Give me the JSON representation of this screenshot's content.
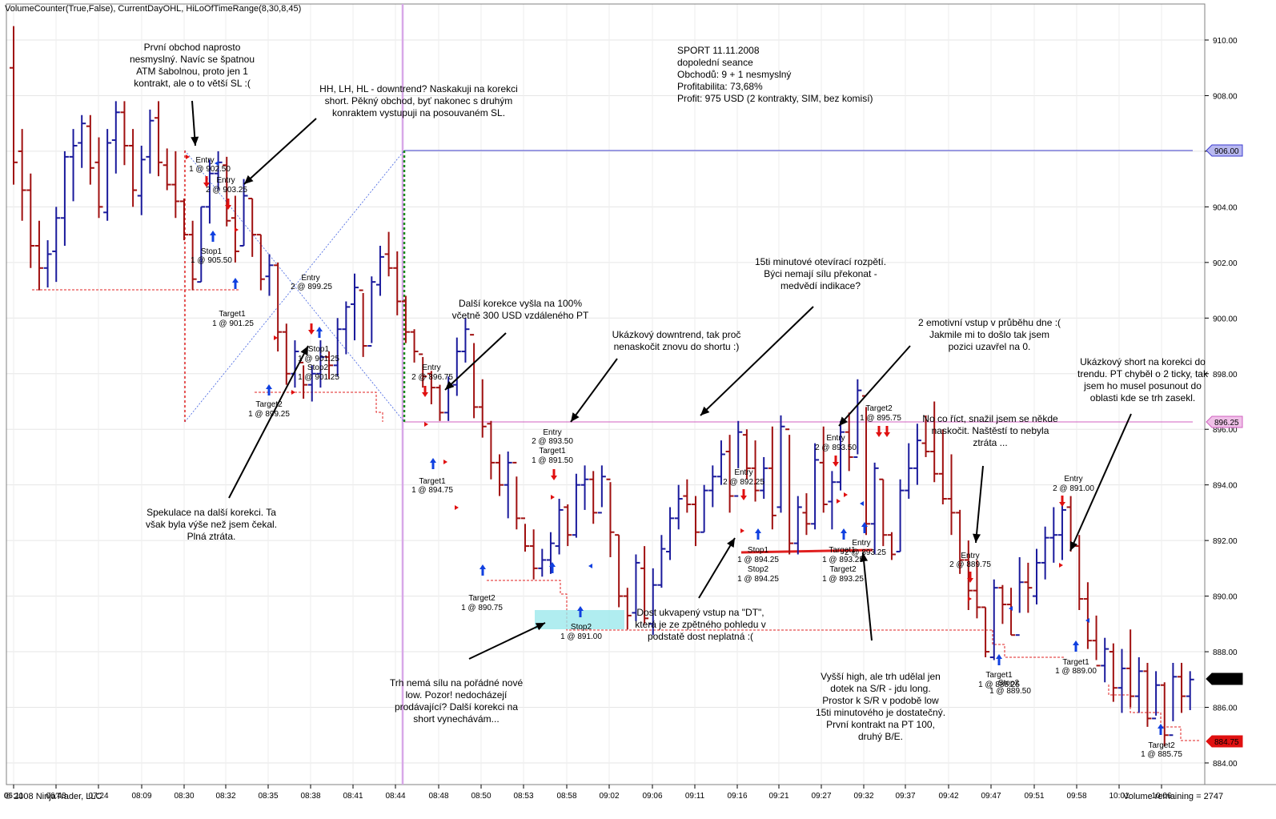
{
  "header": {
    "indicators": "VolumeCounter(True,False), CurrentDayOHL, HiLoOfTimeRange(8,30,8,45)",
    "copyright": "© 2008 NinjaTrader, LLC",
    "volume_remaining": "Volume remaining = 2747"
  },
  "chart_data": {
    "type": "bar",
    "ylim": [
      883.5,
      911.5
    ],
    "yticks": [
      "910.00",
      "908.00",
      "906.00",
      "904.00",
      "902.00",
      "900.00",
      "898.00",
      "896.00",
      "894.00",
      "892.00",
      "890.00",
      "888.00",
      "886.00",
      "884.00"
    ],
    "xticks": [
      "06:11",
      "06:43",
      "07:24",
      "08:09",
      "08:30",
      "08:32",
      "08:35",
      "08:38",
      "08:41",
      "08:44",
      "08:48",
      "08:50",
      "08:53",
      "08:58",
      "09:02",
      "09:06",
      "09:11",
      "09:16",
      "09:21",
      "09:27",
      "09:32",
      "09:37",
      "09:42",
      "09:47",
      "09:51",
      "09:58",
      "10:01",
      "10:06"
    ],
    "price_markers": [
      {
        "value": "906.00",
        "color": "#3c3cd0",
        "style": "line"
      },
      {
        "value": "896.25",
        "color": "#d060c0",
        "style": "line"
      },
      {
        "value": "887.00",
        "color": "#000000",
        "style": "badge"
      },
      {
        "value": "884.75",
        "color": "#e01010",
        "style": "badge"
      }
    ],
    "colors": {
      "up": "#1a1a9c",
      "down": "#a01010"
    },
    "bars": [
      [
        910.5,
        904.8,
        909.0,
        905.6
      ],
      [
        906.8,
        903.5,
        906.0,
        904.6
      ],
      [
        905.2,
        901.8,
        904.6,
        902.6
      ],
      [
        903.5,
        901.0,
        902.6,
        901.8
      ],
      [
        902.8,
        901.1,
        901.8,
        902.3
      ],
      [
        904.0,
        901.3,
        902.4,
        903.6
      ],
      [
        906.0,
        902.6,
        903.6,
        905.8
      ],
      [
        906.8,
        904.2,
        905.8,
        906.2
      ],
      [
        907.3,
        905.4,
        906.3,
        907.0
      ],
      [
        907.3,
        904.8,
        906.9,
        905.4
      ],
      [
        906.5,
        903.6,
        905.6,
        904.0
      ],
      [
        906.8,
        903.5,
        903.8,
        906.3
      ],
      [
        907.8,
        905.2,
        906.4,
        907.4
      ],
      [
        907.8,
        905.5,
        907.4,
        906.2
      ],
      [
        906.8,
        904.0,
        906.2,
        904.6
      ],
      [
        906.2,
        903.7,
        904.4,
        905.7
      ],
      [
        907.5,
        905.2,
        905.8,
        907.1
      ],
      [
        907.8,
        905.1,
        907.2,
        905.6
      ],
      [
        906.1,
        904.6,
        905.5,
        904.8
      ],
      [
        906.0,
        903.6,
        904.8,
        904.2
      ],
      [
        904.3,
        902.8,
        904.2,
        903.0
      ],
      [
        903.5,
        901.0,
        903.0,
        901.4
      ],
      [
        904.0,
        901.3,
        901.3,
        904.0
      ],
      [
        905.7,
        903.4,
        904.0,
        905.2
      ],
      [
        906.0,
        904.6,
        905.2,
        905.6
      ],
      [
        905.8,
        903.3,
        905.5,
        903.5
      ],
      [
        904.4,
        902.0,
        903.6,
        902.4
      ],
      [
        905.0,
        902.6,
        902.6,
        904.4
      ],
      [
        904.3,
        902.2,
        904.3,
        903.0
      ],
      [
        903.0,
        901.0,
        903.0,
        901.4
      ],
      [
        902.3,
        900.8,
        901.5,
        901.9
      ],
      [
        902.0,
        898.8,
        901.9,
        899.5
      ],
      [
        899.8,
        897.6,
        899.5,
        898.0
      ],
      [
        899.2,
        897.5,
        898.0,
        898.8
      ],
      [
        898.3,
        897.1,
        898.4,
        897.6
      ],
      [
        898.3,
        897.0,
        897.6,
        898.0
      ],
      [
        899.2,
        897.5,
        898.0,
        898.6
      ],
      [
        898.8,
        897.8,
        898.6,
        898.3
      ],
      [
        900.0,
        897.9,
        898.3,
        899.6
      ],
      [
        900.6,
        898.7,
        899.6,
        900.4
      ],
      [
        901.6,
        899.2,
        900.5,
        901.1
      ],
      [
        900.9,
        898.6,
        901.0,
        899.0
      ],
      [
        901.5,
        899.1,
        899.0,
        901.3
      ],
      [
        902.6,
        900.8,
        901.2,
        902.2
      ],
      [
        903.1,
        901.5,
        902.3,
        901.8
      ],
      [
        902.4,
        900.1,
        901.8,
        900.6
      ],
      [
        900.8,
        899.1,
        900.6,
        899.5
      ],
      [
        899.6,
        898.4,
        899.5,
        898.8
      ],
      [
        898.6,
        897.5,
        898.7,
        897.9
      ],
      [
        898.1,
        896.9,
        898.0,
        897.5
      ],
      [
        897.6,
        896.3,
        897.5,
        896.6
      ],
      [
        897.9,
        896.3,
        896.6,
        897.6
      ],
      [
        899.3,
        897.2,
        897.6,
        898.8
      ],
      [
        900.0,
        898.4,
        898.8,
        899.6
      ],
      [
        899.1,
        896.4,
        899.4,
        896.8
      ],
      [
        897.8,
        895.7,
        896.8,
        896.1
      ],
      [
        896.3,
        894.2,
        896.2,
        894.8
      ],
      [
        895.1,
        893.6,
        894.8,
        894.0
      ],
      [
        895.2,
        892.8,
        894.0,
        894.8
      ],
      [
        894.3,
        892.4,
        894.8,
        892.8
      ],
      [
        892.6,
        891.6,
        892.8,
        891.8
      ],
      [
        892.4,
        890.6,
        891.8,
        891.0
      ],
      [
        891.7,
        890.7,
        891.0,
        891.3
      ],
      [
        892.3,
        890.8,
        891.3,
        891.9
      ],
      [
        893.5,
        891.5,
        891.8,
        893.1
      ],
      [
        893.3,
        891.8,
        893.2,
        892.2
      ],
      [
        894.4,
        892.1,
        892.2,
        894.0
      ],
      [
        894.7,
        893.1,
        894.0,
        894.2
      ],
      [
        894.5,
        892.6,
        894.2,
        893.0
      ],
      [
        894.7,
        893.2,
        893.0,
        894.3
      ],
      [
        894.1,
        891.4,
        894.2,
        892.3
      ],
      [
        892.2,
        889.6,
        892.2,
        890.0
      ],
      [
        890.3,
        888.8,
        890.0,
        889.3
      ],
      [
        891.5,
        889.1,
        889.4,
        891.2
      ],
      [
        891.8,
        889.0,
        891.0,
        889.2
      ],
      [
        891.0,
        888.6,
        889.0,
        890.4
      ],
      [
        892.2,
        890.3,
        890.4,
        891.7
      ],
      [
        893.2,
        891.3,
        891.6,
        892.8
      ],
      [
        894.0,
        892.4,
        892.8,
        893.5
      ],
      [
        894.2,
        893.0,
        893.6,
        893.3
      ],
      [
        893.6,
        891.8,
        893.3,
        892.3
      ],
      [
        894.0,
        892.3,
        892.3,
        893.8
      ],
      [
        894.7,
        893.2,
        893.8,
        894.3
      ],
      [
        895.6,
        894.0,
        894.3,
        895.1
      ],
      [
        895.8,
        893.0,
        895.2,
        893.6
      ],
      [
        896.3,
        894.6,
        893.6,
        895.9
      ],
      [
        896.0,
        894.2,
        895.8,
        894.6
      ],
      [
        895.6,
        893.4,
        894.6,
        893.8
      ],
      [
        895.0,
        893.5,
        893.8,
        894.6
      ],
      [
        896.1,
        892.4,
        894.6,
        892.9
      ],
      [
        896.5,
        893.0,
        893.2,
        896.1
      ],
      [
        895.8,
        891.5,
        896.0,
        891.9
      ],
      [
        893.6,
        891.5,
        891.9,
        893.2
      ],
      [
        893.7,
        892.2,
        893.0,
        892.6
      ],
      [
        895.5,
        892.4,
        892.6,
        894.9
      ],
      [
        896.1,
        893.0,
        894.8,
        893.3
      ],
      [
        894.5,
        892.4,
        893.4,
        894.1
      ],
      [
        896.3,
        893.8,
        894.1,
        895.9
      ],
      [
        896.6,
        894.5,
        895.9,
        895.0
      ],
      [
        897.8,
        895.1,
        895.0,
        897.4
      ],
      [
        896.8,
        892.2,
        897.2,
        892.6
      ],
      [
        894.8,
        891.5,
        892.6,
        894.6
      ],
      [
        894.2,
        891.8,
        894.2,
        892.2
      ],
      [
        892.3,
        891.3,
        892.2,
        891.5
      ],
      [
        894.2,
        891.6,
        891.6,
        893.8
      ],
      [
        895.5,
        893.5,
        893.8,
        894.6
      ],
      [
        896.2,
        894.0,
        894.6,
        895.6
      ],
      [
        896.5,
        895.0,
        895.5,
        895.2
      ],
      [
        897.0,
        894.1,
        895.2,
        894.4
      ],
      [
        896.0,
        893.3,
        894.4,
        893.5
      ],
      [
        895.1,
        892.2,
        893.5,
        893.0
      ],
      [
        893.1,
        890.8,
        893.0,
        891.3
      ],
      [
        892.0,
        889.5,
        891.3,
        890.2
      ],
      [
        891.3,
        889.2,
        890.2,
        889.6
      ],
      [
        889.6,
        887.8,
        889.6,
        888.0
      ],
      [
        890.6,
        887.7,
        887.8,
        890.3
      ],
      [
        890.4,
        889.0,
        890.3,
        889.7
      ],
      [
        890.3,
        888.6,
        889.7,
        888.6
      ],
      [
        891.4,
        889.4,
        888.6,
        890.5
      ],
      [
        891.2,
        889.4,
        890.5,
        890.3
      ],
      [
        891.7,
        889.7,
        890.0,
        891.2
      ],
      [
        892.5,
        890.6,
        891.2,
        892.1
      ],
      [
        893.2,
        891.2,
        892.1,
        892.2
      ],
      [
        893.5,
        891.3,
        892.2,
        893.1
      ],
      [
        893.6,
        891.6,
        893.2,
        891.8
      ],
      [
        892.2,
        889.5,
        891.8,
        889.9
      ],
      [
        890.5,
        888.1,
        889.9,
        888.4
      ],
      [
        889.3,
        887.7,
        888.4,
        887.5
      ],
      [
        888.5,
        886.9,
        887.5,
        888.1
      ],
      [
        888.3,
        886.2,
        888.0,
        886.7
      ],
      [
        888.1,
        885.8,
        886.7,
        887.4
      ],
      [
        888.8,
        886.0,
        887.4,
        886.4
      ],
      [
        887.8,
        885.8,
        886.4,
        887.3
      ],
      [
        887.6,
        885.3,
        887.3,
        885.6
      ],
      [
        887.3,
        885.7,
        885.6,
        886.8
      ],
      [
        886.9,
        884.6,
        886.8,
        885.0
      ],
      [
        887.6,
        885.5,
        885.0,
        887.1
      ],
      [
        887.6,
        885.8,
        887.1,
        886.4
      ],
      [
        887.3,
        885.9,
        886.4,
        887.0
      ]
    ]
  },
  "annotations": [
    {
      "id": "n1",
      "text": "První obchod naprosto\nnesmyslný. Navíc se špatnou\nATM šabolnou, proto jen 1\nkontrakt, ale o to větší SL :("
    },
    {
      "id": "n2",
      "text": "HH, LH, HL - downtrend? Naskakuji na korekci\nshort. Pěkný obchod, byť nakonec s druhým\nkonraktem vystupuji na posouvaném SL."
    },
    {
      "id": "n3",
      "text": "SPORT 11.11.2008\ndopolední seance\nObchodů: 9 + 1 nesmyslný\nProfitabilita: 73,68%\nProfit: 975 USD (2 kontrakty, SIM, bez komisí)"
    },
    {
      "id": "n4",
      "text": "15ti minutové otevírací rozpětí.\nBýci nemají sílu překonat -\nmedvědí indikace?"
    },
    {
      "id": "n5",
      "text": "Další korekce vyšla na 100%\nvčetně 300 USD vzdáleného PT"
    },
    {
      "id": "n6",
      "text": "Ukázkový downtrend, tak proč\nnenaskočit znovu do shortu :)"
    },
    {
      "id": "n7",
      "text": "2 emotivní vstup v průběhu dne :(\nJakmile mi to došlo tak jsem\npozici uzavřel na 0."
    },
    {
      "id": "n8",
      "text": "Ukázkový short na korekci do\ntrendu. PT chyběl o 2 ticky, tak\njsem ho musel posunout do\noblasti kde se trh zasekl."
    },
    {
      "id": "n9",
      "text": "No co říct, snažil jsem se někde\nnaskočit. Naštěstí to nebyla\nztráta ..."
    },
    {
      "id": "n10",
      "text": "Spekulace na další korekci. Ta\nvšak byla výše než jsem čekal.\nPlná ztráta."
    },
    {
      "id": "n11",
      "text": "Dost ukvapený vstup na \"DT\",\nkterá je ze zpětného pohledu v\npodstatě dost neplatná :("
    },
    {
      "id": "n12",
      "text": "Trh nemá sílu na pořádné nové\nlow. Pozor! nedocházejí\nprodávající? Další korekci na\nshort vynechávám..."
    },
    {
      "id": "n13",
      "text": "Vyšší high, ale trh udělal jen\ndotek na S/R - jdu long.\nProstor k S/R v podobě low\n15ti minutového je dostatečný.\nPrvní kontrakt na PT 100,\ndruhý B/E."
    }
  ],
  "trade_labels": [
    {
      "t": "Entry"
    },
    {
      "t": "1 @ 902.50"
    },
    {
      "t": "Entry"
    },
    {
      "t": "2 @ 903.25"
    },
    {
      "t": "Stop1"
    },
    {
      "t": "1 @ 905.50"
    },
    {
      "t": "Target1"
    },
    {
      "t": "1 @ 901.25"
    },
    {
      "t": "Entry"
    },
    {
      "t": "2 @ 899.25"
    },
    {
      "t": "Stop1"
    },
    {
      "t": "1 @ 901.25"
    },
    {
      "t": "Stop2"
    },
    {
      "t": "1 @ 901.25"
    },
    {
      "t": "Target2"
    },
    {
      "t": "1 @ 899.25"
    },
    {
      "t": "Entry"
    },
    {
      "t": "2 @ 896.75"
    },
    {
      "t": "Target1"
    },
    {
      "t": "1 @ 894.75"
    },
    {
      "t": "Target2"
    },
    {
      "t": "1 @ 890.75"
    },
    {
      "t": "Entry"
    },
    {
      "t": "2 @ 893.50"
    },
    {
      "t": "Target1"
    },
    {
      "t": "1 @ 891.50"
    },
    {
      "t": "Stop2"
    },
    {
      "t": "1 @ 891.00"
    },
    {
      "t": "Entry"
    },
    {
      "t": "2 @ 892.25"
    },
    {
      "t": "Stop1"
    },
    {
      "t": "1 @ 894.25"
    },
    {
      "t": "Stop2"
    },
    {
      "t": "1 @ 894.25"
    },
    {
      "t": "Entry"
    },
    {
      "t": "2 @ 893.50"
    },
    {
      "t": "Target1"
    },
    {
      "t": "1 @ 893.25"
    },
    {
      "t": "Target2"
    },
    {
      "t": "1 @ 893.25"
    },
    {
      "t": "Entry"
    },
    {
      "t": "2 @ 893.25"
    },
    {
      "t": "Target2"
    },
    {
      "t": "1 @ 895.75"
    },
    {
      "t": "Entry"
    },
    {
      "t": "2 @ 889.75"
    },
    {
      "t": "Target1"
    },
    {
      "t": "1 @ 888.25"
    },
    {
      "t": "Stop2"
    },
    {
      "t": "1 @ 889.50"
    },
    {
      "t": "Entry"
    },
    {
      "t": "2 @ 891.00"
    },
    {
      "t": "Target1"
    },
    {
      "t": "1 @ 889.00"
    },
    {
      "t": "Target2"
    },
    {
      "t": "1 @ 885.75"
    }
  ]
}
